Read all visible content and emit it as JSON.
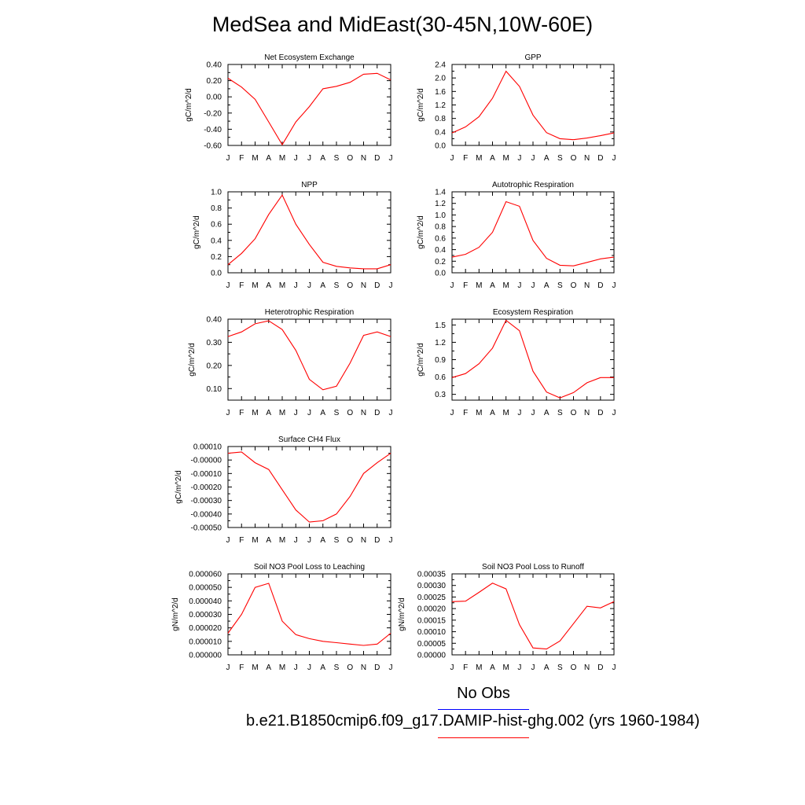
{
  "title": "MedSea and MidEast(30-45N,10W-60E)",
  "legend": {
    "obs_label": "No Obs",
    "obs_color": "#0000ff",
    "model_label": "b.e21.B1850cmip6.f09_g17.DAMIP-hist-ghg.002 (yrs 1960-1984)",
    "model_color": "#ff0000"
  },
  "chart_data": [
    {
      "type": "line",
      "title": "Net Ecosystem Exchange",
      "ylabel": "gC/m^2/d",
      "categories": [
        "J",
        "F",
        "M",
        "A",
        "M",
        "J",
        "J",
        "A",
        "S",
        "O",
        "N",
        "D",
        "J"
      ],
      "values": [
        0.23,
        0.12,
        -0.03,
        -0.31,
        -0.59,
        -0.31,
        -0.12,
        0.1,
        0.13,
        0.18,
        0.28,
        0.29,
        0.21
      ],
      "ylim": [
        -0.6,
        0.4
      ],
      "yticks": [
        -0.6,
        -0.4,
        -0.2,
        0.0,
        0.2,
        0.4
      ],
      "ytick_labels": [
        "-0.60",
        "-0.40",
        "-0.20",
        "0.00",
        "0.20",
        "0.40"
      ]
    },
    {
      "type": "line",
      "title": "GPP",
      "ylabel": "gC/m^2/d",
      "categories": [
        "J",
        "F",
        "M",
        "A",
        "M",
        "J",
        "J",
        "A",
        "S",
        "O",
        "N",
        "D",
        "J"
      ],
      "values": [
        0.37,
        0.55,
        0.85,
        1.4,
        2.2,
        1.75,
        0.9,
        0.38,
        0.2,
        0.17,
        0.22,
        0.29,
        0.37
      ],
      "ylim": [
        0.0,
        2.4
      ],
      "yticks": [
        0.0,
        0.4,
        0.8,
        1.2,
        1.6,
        2.0,
        2.4
      ],
      "ytick_labels": [
        "0.0",
        "0.4",
        "0.8",
        "1.2",
        "1.6",
        "2.0",
        "2.4"
      ]
    },
    {
      "type": "line",
      "title": "NPP",
      "ylabel": "gC/m^2/d",
      "categories": [
        "J",
        "F",
        "M",
        "A",
        "M",
        "J",
        "J",
        "A",
        "S",
        "O",
        "N",
        "D",
        "J"
      ],
      "values": [
        0.1,
        0.24,
        0.42,
        0.72,
        0.96,
        0.6,
        0.35,
        0.13,
        0.08,
        0.06,
        0.05,
        0.05,
        0.1
      ],
      "ylim": [
        0.0,
        1.0
      ],
      "yticks": [
        0.0,
        0.2,
        0.4,
        0.6,
        0.8,
        1.0
      ],
      "ytick_labels": [
        "0.0",
        "0.2",
        "0.4",
        "0.6",
        "0.8",
        "1.0"
      ]
    },
    {
      "type": "line",
      "title": "Autotrophic Respiration",
      "ylabel": "gC/m^2/d",
      "categories": [
        "J",
        "F",
        "M",
        "A",
        "M",
        "J",
        "J",
        "A",
        "S",
        "O",
        "N",
        "D",
        "J"
      ],
      "values": [
        0.27,
        0.32,
        0.44,
        0.7,
        1.23,
        1.15,
        0.56,
        0.25,
        0.13,
        0.12,
        0.18,
        0.24,
        0.27
      ],
      "ylim": [
        0.0,
        1.4
      ],
      "yticks": [
        0.0,
        0.2,
        0.4,
        0.6,
        0.8,
        1.0,
        1.2,
        1.4
      ],
      "ytick_labels": [
        "0.0",
        "0.2",
        "0.4",
        "0.6",
        "0.8",
        "1.0",
        "1.2",
        "1.4"
      ]
    },
    {
      "type": "line",
      "title": "Heterotrophic Respiration",
      "ylabel": "gC/m^2/d",
      "categories": [
        "J",
        "F",
        "M",
        "A",
        "M",
        "J",
        "J",
        "A",
        "S",
        "O",
        "N",
        "D",
        "J"
      ],
      "values": [
        0.325,
        0.345,
        0.38,
        0.393,
        0.355,
        0.265,
        0.14,
        0.095,
        0.11,
        0.21,
        0.33,
        0.345,
        0.325
      ],
      "ylim": [
        0.05,
        0.4
      ],
      "yticks": [
        0.1,
        0.2,
        0.3,
        0.4
      ],
      "ytick_labels": [
        "0.10",
        "0.20",
        "0.30",
        "0.40"
      ]
    },
    {
      "type": "line",
      "title": "Ecosystem Respiration",
      "ylabel": "gC/m^2/d",
      "categories": [
        "J",
        "F",
        "M",
        "A",
        "M",
        "J",
        "J",
        "A",
        "S",
        "O",
        "N",
        "D",
        "J"
      ],
      "values": [
        0.59,
        0.66,
        0.83,
        1.1,
        1.58,
        1.4,
        0.7,
        0.34,
        0.24,
        0.33,
        0.5,
        0.59,
        0.59
      ],
      "ylim": [
        0.2,
        1.6
      ],
      "yticks": [
        0.3,
        0.6,
        0.9,
        1.2,
        1.5
      ],
      "ytick_labels": [
        "0.3",
        "0.6",
        "0.9",
        "1.2",
        "1.5"
      ]
    },
    {
      "type": "line",
      "title": "Surface CH4 Flux",
      "ylabel": "gC/m^2/d",
      "categories": [
        "J",
        "F",
        "M",
        "A",
        "M",
        "J",
        "J",
        "A",
        "S",
        "O",
        "N",
        "D",
        "J"
      ],
      "values": [
        5e-05,
        6e-05,
        -2e-05,
        -7e-05,
        -0.00022,
        -0.00037,
        -0.00046,
        -0.00045,
        -0.0004,
        -0.00027,
        -0.0001,
        -2e-05,
        5e-05
      ],
      "ylim": [
        -0.0005,
        0.0001
      ],
      "yticks": [
        -0.0005,
        -0.0004,
        -0.0003,
        -0.0002,
        -0.0001,
        0.0,
        0.0001
      ],
      "ytick_labels": [
        "-0.00050",
        "-0.00040",
        "-0.00030",
        "-0.00020",
        "-0.00010",
        "-0.00000",
        "0.00010"
      ]
    },
    {
      "type": "line",
      "title": "Soil NO3 Pool Loss to Leaching",
      "ylabel": "gN/m^2/d",
      "categories": [
        "J",
        "F",
        "M",
        "A",
        "M",
        "J",
        "J",
        "A",
        "S",
        "O",
        "N",
        "D",
        "J"
      ],
      "values": [
        1.6e-05,
        3e-05,
        5e-05,
        5.3e-05,
        2.5e-05,
        1.5e-05,
        1.2e-05,
        1e-05,
        9e-06,
        8e-06,
        7e-06,
        8e-06,
        1.6e-05
      ],
      "ylim": [
        0.0,
        6e-05
      ],
      "yticks": [
        0.0,
        1e-05,
        2e-05,
        3e-05,
        4e-05,
        5e-05,
        6e-05
      ],
      "ytick_labels": [
        "0.000000",
        "0.000010",
        "0.000020",
        "0.000030",
        "0.000040",
        "0.000050",
        "0.000060"
      ]
    },
    {
      "type": "line",
      "title": "Soil NO3 Pool Loss to Runoff",
      "ylabel": "gN/m^2/d",
      "categories": [
        "J",
        "F",
        "M",
        "A",
        "M",
        "J",
        "J",
        "A",
        "S",
        "O",
        "N",
        "D",
        "J"
      ],
      "values": [
        0.00023,
        0.000232,
        0.00027,
        0.00031,
        0.000285,
        0.00013,
        3e-05,
        2.5e-05,
        6e-05,
        0.000135,
        0.00021,
        0.000203,
        0.00023
      ],
      "ylim": [
        0.0,
        0.00035
      ],
      "yticks": [
        0.0,
        5e-05,
        0.0001,
        0.00015,
        0.0002,
        0.00025,
        0.0003,
        0.00035
      ],
      "ytick_labels": [
        "0.00000",
        "0.00005",
        "0.00010",
        "0.00015",
        "0.00020",
        "0.00025",
        "0.00030",
        "0.00035"
      ]
    }
  ]
}
